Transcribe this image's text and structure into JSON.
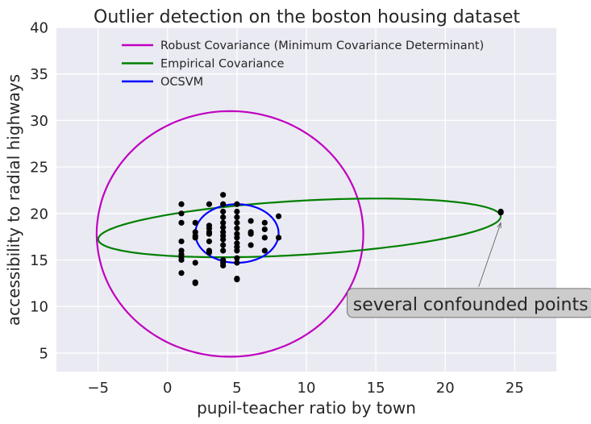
{
  "chart_data": {
    "type": "scatter",
    "title": "Outlier detection on the boston housing dataset",
    "xlabel": "pupil-teacher ratio by town",
    "ylabel": "accessibility to radial highways",
    "xlim": [
      -8,
      28
    ],
    "ylim": [
      3,
      40
    ],
    "xticks": [
      -5,
      0,
      5,
      10,
      15,
      20,
      25
    ],
    "yticks": [
      5,
      10,
      15,
      20,
      25,
      30,
      35,
      40
    ],
    "xtick_labels": [
      "−5",
      "0",
      "5",
      "10",
      "15",
      "20",
      "25"
    ],
    "ytick_labels": [
      "5",
      "10",
      "15",
      "20",
      "25",
      "30",
      "35",
      "40"
    ],
    "grid": true,
    "background": "#eaeaf2",
    "legend_position": "top-left",
    "points": [
      [
        1,
        21
      ],
      [
        1,
        20
      ],
      [
        1,
        19
      ],
      [
        1,
        17
      ],
      [
        1,
        16
      ],
      [
        1,
        15.6
      ],
      [
        1,
        15.3
      ],
      [
        1,
        15
      ],
      [
        1,
        13.6
      ],
      [
        2,
        19
      ],
      [
        2,
        18
      ],
      [
        2,
        17.6
      ],
      [
        2,
        17.4
      ],
      [
        2,
        14.7
      ],
      [
        2,
        12.6
      ],
      [
        2,
        12.5
      ],
      [
        3,
        21
      ],
      [
        3,
        18.7
      ],
      [
        3,
        18.4
      ],
      [
        3,
        18
      ],
      [
        3,
        17.8
      ],
      [
        3,
        17
      ],
      [
        3,
        16
      ],
      [
        3,
        15.8
      ],
      [
        4,
        22
      ],
      [
        4,
        21
      ],
      [
        4,
        20.2
      ],
      [
        4,
        19.6
      ],
      [
        4,
        19
      ],
      [
        4,
        18.5
      ],
      [
        4,
        18
      ],
      [
        4,
        17.6
      ],
      [
        4,
        17.2
      ],
      [
        4,
        16.6
      ],
      [
        4,
        16
      ],
      [
        4,
        15
      ],
      [
        4,
        14.7
      ],
      [
        4,
        14.4
      ],
      [
        5,
        21
      ],
      [
        5,
        20.2
      ],
      [
        5,
        19.6
      ],
      [
        5,
        19
      ],
      [
        5,
        18.4
      ],
      [
        5,
        17.8
      ],
      [
        5,
        17.4
      ],
      [
        5,
        16.8
      ],
      [
        5,
        16.4
      ],
      [
        5,
        16
      ],
      [
        5,
        15.2
      ],
      [
        5,
        14.7
      ],
      [
        5,
        13
      ],
      [
        5,
        12.9
      ],
      [
        6,
        19.2
      ],
      [
        6,
        18
      ],
      [
        6,
        17.8
      ],
      [
        6,
        16.6
      ],
      [
        7,
        19
      ],
      [
        7,
        18.3
      ],
      [
        7,
        17.4
      ],
      [
        7,
        16
      ],
      [
        8,
        19.7
      ],
      [
        8,
        17.4
      ],
      [
        24,
        20.2
      ],
      [
        24,
        20.1
      ]
    ],
    "series": [
      {
        "name": "Robust Covariance (Minimum Covariance Determinant)",
        "color": "#bf00bf",
        "ellipse": {
          "cx": 4.5,
          "cy": 17.8,
          "rx": 9.6,
          "ry": 13.2,
          "angle_deg": 0
        }
      },
      {
        "name": "Empirical Covariance",
        "color": "#008000",
        "ellipse": {
          "cx": 9.5,
          "cy": 18.45,
          "rx": 14.55,
          "ry": 2.9,
          "angle_deg": 5
        }
      },
      {
        "name": "OCSVM",
        "color": "#0000ff",
        "ellipse": {
          "cx": 5.0,
          "cy": 17.85,
          "rx": 3.0,
          "ry": 3.15,
          "angle_deg": 0
        }
      }
    ],
    "annotations": [
      {
        "text": "several confounded points",
        "xy": [
          24,
          19
        ],
        "text_xy": [
          13,
          10.2
        ]
      }
    ]
  }
}
